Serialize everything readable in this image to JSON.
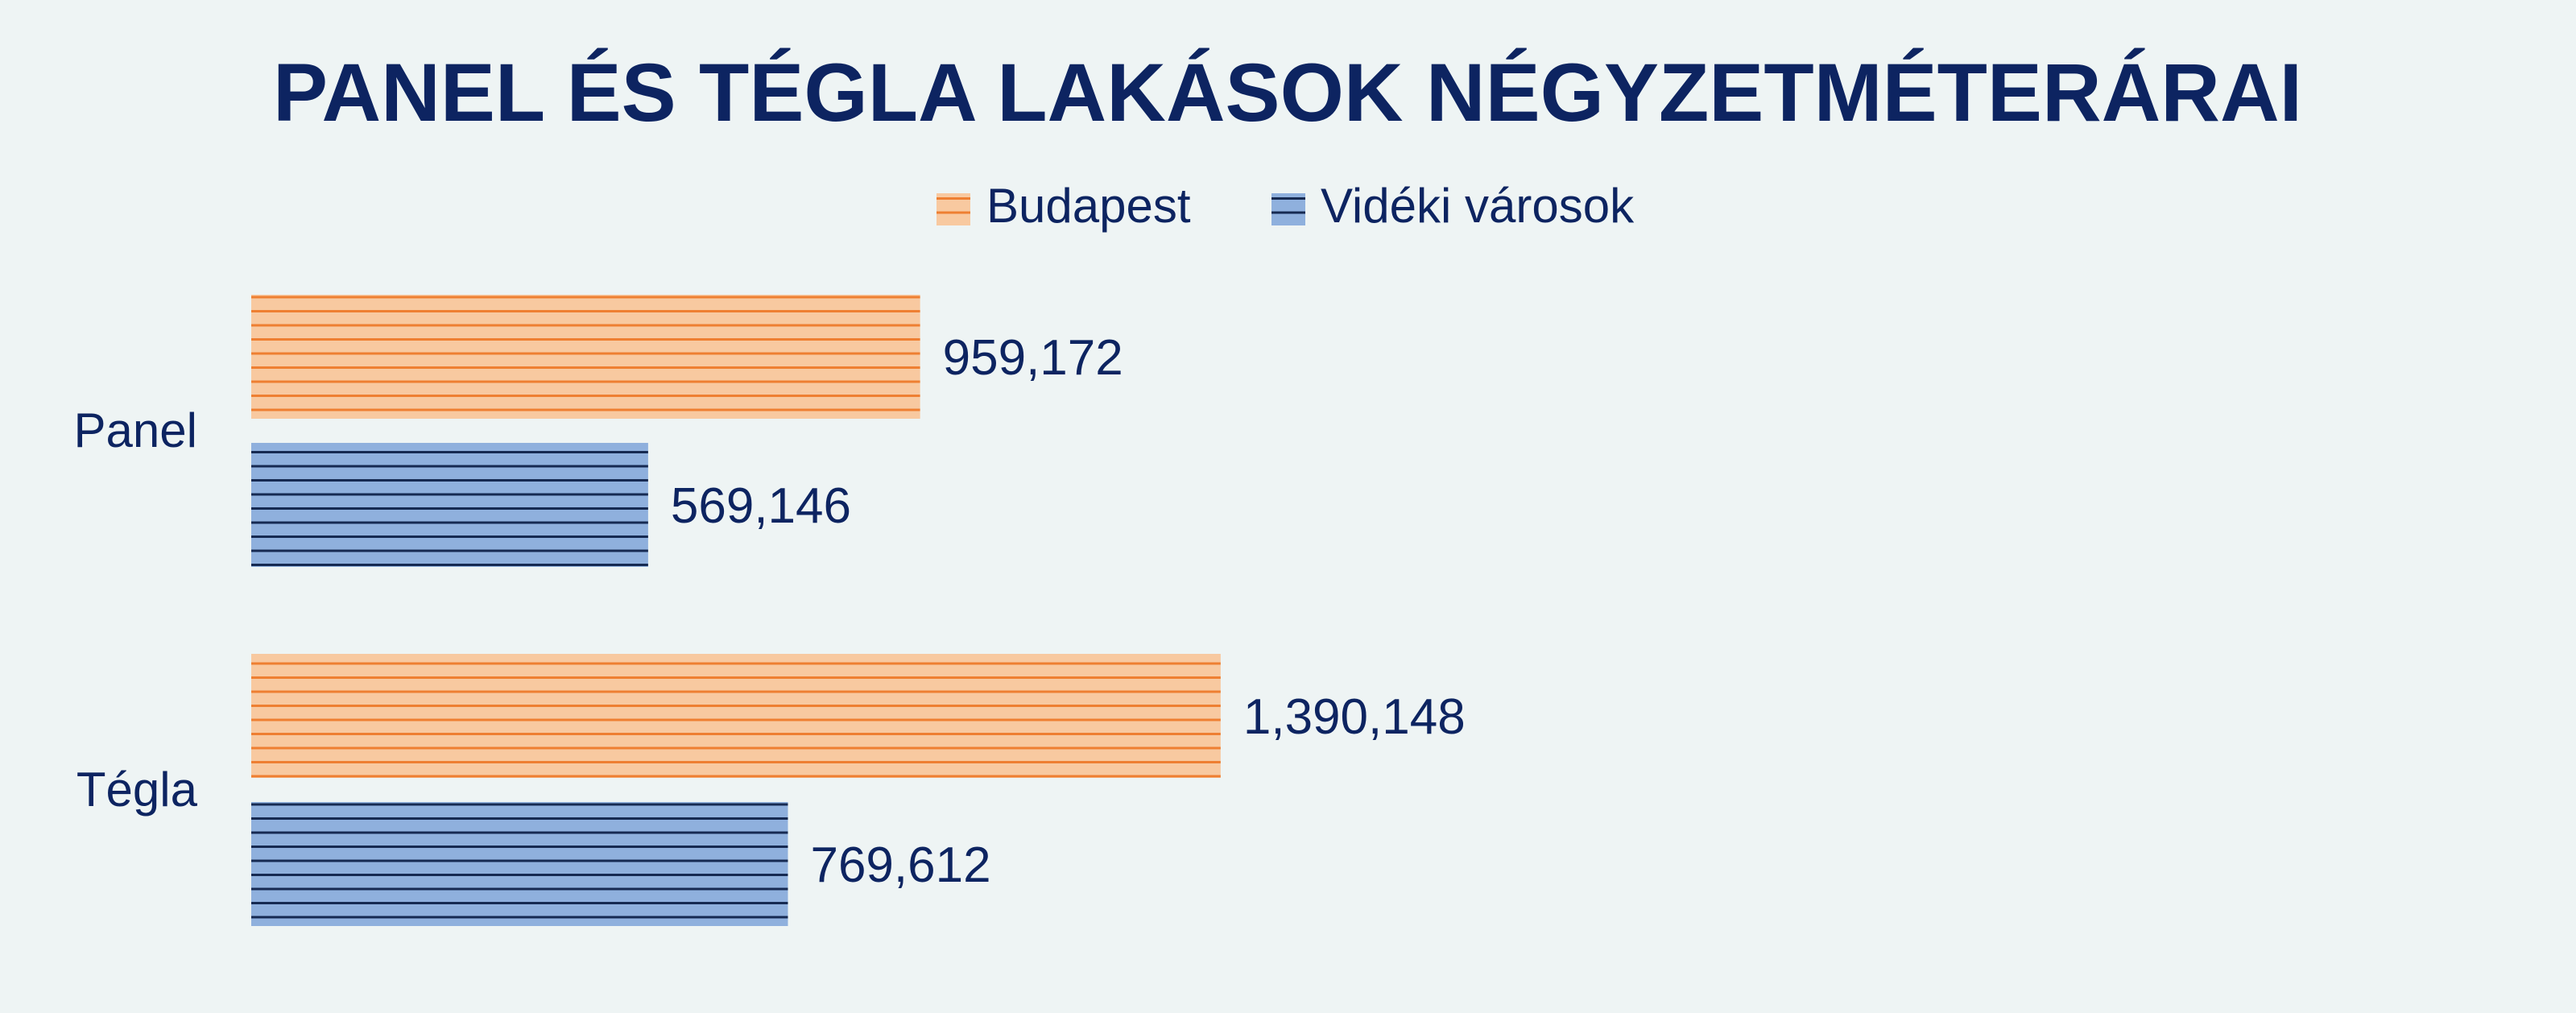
{
  "colors": {
    "background": "#eef4f4",
    "text": "#0d2461",
    "budapest_fill": "#f8c9a0",
    "budapest_stripe": "#ee7f32",
    "videki_fill": "#8fb0dd",
    "videki_stripe": "#162a52"
  },
  "chart_data": {
    "type": "bar",
    "orientation": "horizontal",
    "title": "PANEL ÉS TÉGLA LAKÁSOK NÉGYZETMÉTERÁRAI",
    "categories": [
      "Panel",
      "Tégla"
    ],
    "series": [
      {
        "name": "Budapest",
        "values": [
          959172,
          1390148
        ],
        "labels": [
          "959,172",
          "1,390,148"
        ],
        "pattern": "horizontal-stripes"
      },
      {
        "name": "Vidéki városok",
        "values": [
          569146,
          769612
        ],
        "labels": [
          "569,146",
          "769,612"
        ],
        "pattern": "horizontal-stripes"
      }
    ],
    "xlim": [
      0,
      1500000
    ],
    "legend_position": "top-center",
    "grid": false,
    "axes_visible": false
  }
}
